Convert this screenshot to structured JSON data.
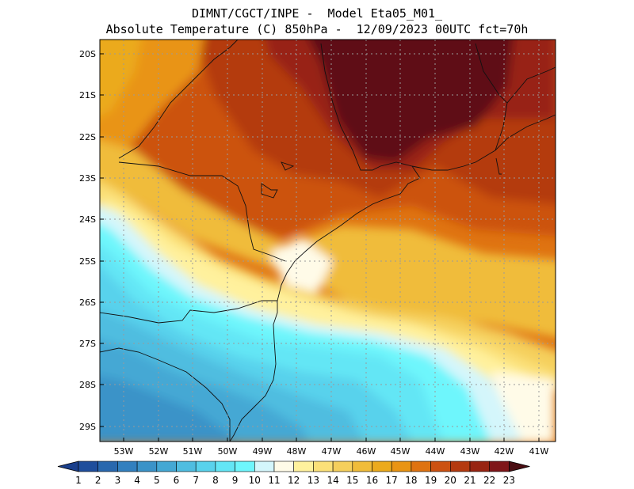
{
  "header": {
    "line1": "DIMNT/CGCT/INPE -  Model Eta05_M01_",
    "line2": "Absolute Temperature (C) 850hPa -  12/09/2023 00UTC fct=70h"
  },
  "chart_data": {
    "type": "heatmap",
    "variable": "Absolute Temperature (C) 850hPa",
    "lat_ticks": [
      "20S",
      "21S",
      "22S",
      "23S",
      "24S",
      "25S",
      "26S",
      "27S",
      "28S",
      "29S"
    ],
    "lon_ticks": [
      "53W",
      "52W",
      "51W",
      "50W",
      "49W",
      "48W",
      "47W",
      "46W",
      "45W",
      "44W",
      "43W",
      "42W",
      "41W"
    ],
    "lat_range": [
      -29.5,
      -19.6
    ],
    "lon_range": [
      -53.7,
      -40.6
    ],
    "colorbar": {
      "labels": [
        "1",
        "2",
        "3",
        "4",
        "5",
        "6",
        "7",
        "8",
        "9",
        "10",
        "11",
        "12",
        "13",
        "14",
        "15",
        "16",
        "17",
        "18",
        "19",
        "20",
        "21",
        "22",
        "23"
      ],
      "colors": [
        "#1f4e9c",
        "#2968ae",
        "#3280bf",
        "#3b93c8",
        "#44a8d4",
        "#4fbde0",
        "#59d2ec",
        "#63e6f5",
        "#6ef6fc",
        "#d4f6fb",
        "#fffbe8",
        "#fff19d",
        "#fbe078",
        "#f5cf5c",
        "#f0bc3a",
        "#ebaa1d",
        "#e99413",
        "#df7311",
        "#cc5211",
        "#b43a0f",
        "#982412",
        "#7f1619",
        "#5e0f14"
      ],
      "left_arrow_color": "#1a3f8c",
      "right_arrow_color": "#4a0d12"
    }
  }
}
